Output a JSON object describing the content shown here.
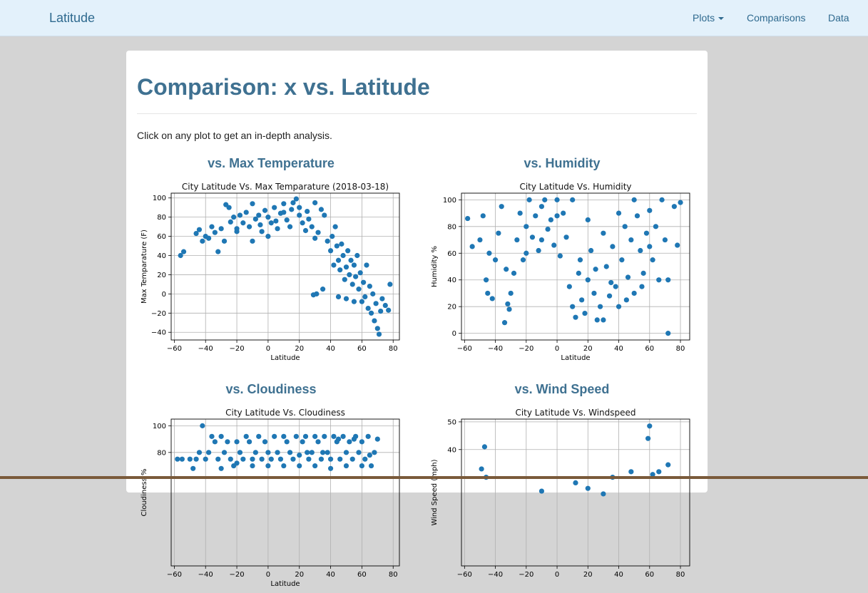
{
  "navbar": {
    "brand": "Latitude",
    "plots_label": "Plots",
    "comparisons_label": "Comparisons",
    "data_label": "Data"
  },
  "page": {
    "title": "Comparison: x vs. Latitude",
    "intro": "Click on any plot to get an in-depth analysis."
  },
  "plots": [
    {
      "heading": "vs. Max Temperature",
      "chart_data": {
        "type": "scatter",
        "title": "City Latitude Vs. Max Temparature (2018-03-18)",
        "xlabel": "Latitude",
        "ylabel": "Max Temparature (F)",
        "xlim": [
          -62,
          84
        ],
        "ylim": [
          -48,
          105
        ],
        "xticks": [
          -60,
          -40,
          -20,
          0,
          20,
          40,
          60,
          80
        ],
        "yticks": [
          -40,
          -20,
          0,
          20,
          40,
          60,
          80,
          100
        ],
        "xtick_labels": [
          "−60",
          "−40",
          "−20",
          "0",
          "20",
          "40",
          "60",
          "80"
        ],
        "ytick_labels": [
          "−40",
          "−20",
          "0",
          "20",
          "40",
          "60",
          "80",
          "100"
        ],
        "grid": true,
        "color": "#1f77b4",
        "points": [
          [
            -56,
            40
          ],
          [
            -54,
            44
          ],
          [
            -46,
            63
          ],
          [
            -44,
            67
          ],
          [
            -42,
            55
          ],
          [
            -40,
            60
          ],
          [
            -38,
            58
          ],
          [
            -36,
            70
          ],
          [
            -34,
            64
          ],
          [
            -32,
            44
          ],
          [
            -30,
            68
          ],
          [
            -28,
            55
          ],
          [
            -27,
            93
          ],
          [
            -25,
            90
          ],
          [
            -24,
            75
          ],
          [
            -22,
            80
          ],
          [
            -20,
            65
          ],
          [
            -18,
            82
          ],
          [
            -16,
            74
          ],
          [
            -14,
            85
          ],
          [
            -12,
            70
          ],
          [
            -10,
            55
          ],
          [
            -8,
            78
          ],
          [
            -6,
            82
          ],
          [
            -4,
            65
          ],
          [
            -2,
            87
          ],
          [
            0,
            80
          ],
          [
            2,
            74
          ],
          [
            4,
            90
          ],
          [
            6,
            68
          ],
          [
            8,
            84
          ],
          [
            10,
            94
          ],
          [
            12,
            77
          ],
          [
            14,
            70
          ],
          [
            16,
            95
          ],
          [
            18,
            99
          ],
          [
            20,
            82
          ],
          [
            22,
            74
          ],
          [
            24,
            66
          ],
          [
            26,
            78
          ],
          [
            28,
            70
          ],
          [
            30,
            58
          ],
          [
            32,
            64
          ],
          [
            34,
            88
          ],
          [
            36,
            82
          ],
          [
            38,
            55
          ],
          [
            40,
            45
          ],
          [
            41,
            60
          ],
          [
            42,
            30
          ],
          [
            43,
            70
          ],
          [
            44,
            50
          ],
          [
            45,
            35
          ],
          [
            46,
            25
          ],
          [
            47,
            52
          ],
          [
            48,
            40
          ],
          [
            49,
            15
          ],
          [
            50,
            28
          ],
          [
            51,
            45
          ],
          [
            52,
            20
          ],
          [
            53,
            35
          ],
          [
            54,
            10
          ],
          [
            55,
            30
          ],
          [
            56,
            18
          ],
          [
            57,
            40
          ],
          [
            58,
            5
          ],
          [
            59,
            22
          ],
          [
            60,
            -8
          ],
          [
            61,
            12
          ],
          [
            62,
            -3
          ],
          [
            63,
            30
          ],
          [
            64,
            -15
          ],
          [
            65,
            8
          ],
          [
            66,
            -20
          ],
          [
            67,
            0
          ],
          [
            68,
            -28
          ],
          [
            69,
            -10
          ],
          [
            70,
            -36
          ],
          [
            71,
            -42
          ],
          [
            72,
            -18
          ],
          [
            73,
            -5
          ],
          [
            75,
            -12
          ],
          [
            77,
            -17
          ],
          [
            78,
            10
          ],
          [
            29,
            -1
          ],
          [
            31,
            0
          ],
          [
            35,
            5
          ],
          [
            45,
            -3
          ],
          [
            50,
            -5
          ],
          [
            55,
            -8
          ],
          [
            30,
            95
          ],
          [
            25,
            86
          ],
          [
            20,
            90
          ],
          [
            15,
            88
          ],
          [
            -10,
            94
          ],
          [
            -5,
            72
          ],
          [
            10,
            85
          ],
          [
            5,
            76
          ],
          [
            0,
            60
          ],
          [
            -20,
            68
          ]
        ]
      }
    },
    {
      "heading": "vs. Humidity",
      "chart_data": {
        "type": "scatter",
        "title": "City Latitude Vs. Humidity",
        "xlabel": "Latitude",
        "ylabel": "Humidity %",
        "xlim": [
          -62,
          86
        ],
        "ylim": [
          -5,
          105
        ],
        "xticks": [
          -60,
          -40,
          -20,
          0,
          20,
          40,
          60,
          80
        ],
        "yticks": [
          0,
          20,
          40,
          60,
          80,
          100
        ],
        "xtick_labels": [
          "−60",
          "−40",
          "−20",
          "0",
          "20",
          "40",
          "60",
          "80"
        ],
        "ytick_labels": [
          "0",
          "20",
          "40",
          "60",
          "80",
          "100"
        ],
        "grid": true,
        "color": "#1f77b4",
        "points": [
          [
            -58,
            86
          ],
          [
            -55,
            65
          ],
          [
            -50,
            70
          ],
          [
            -48,
            88
          ],
          [
            -46,
            40
          ],
          [
            -45,
            30
          ],
          [
            -44,
            60
          ],
          [
            -42,
            26
          ],
          [
            -40,
            55
          ],
          [
            -38,
            75
          ],
          [
            -36,
            95
          ],
          [
            -34,
            8
          ],
          [
            -33,
            48
          ],
          [
            -32,
            22
          ],
          [
            -31,
            18
          ],
          [
            -30,
            30
          ],
          [
            -28,
            45
          ],
          [
            -26,
            70
          ],
          [
            -24,
            90
          ],
          [
            -22,
            55
          ],
          [
            -20,
            80
          ],
          [
            -18,
            100
          ],
          [
            -16,
            72
          ],
          [
            -14,
            88
          ],
          [
            -12,
            62
          ],
          [
            -10,
            95
          ],
          [
            -8,
            100
          ],
          [
            -6,
            78
          ],
          [
            -4,
            85
          ],
          [
            -2,
            66
          ],
          [
            0,
            100
          ],
          [
            2,
            58
          ],
          [
            4,
            90
          ],
          [
            6,
            72
          ],
          [
            8,
            35
          ],
          [
            10,
            20
          ],
          [
            12,
            12
          ],
          [
            14,
            45
          ],
          [
            16,
            25
          ],
          [
            18,
            15
          ],
          [
            20,
            40
          ],
          [
            22,
            62
          ],
          [
            24,
            30
          ],
          [
            26,
            10
          ],
          [
            28,
            20
          ],
          [
            30,
            10
          ],
          [
            32,
            50
          ],
          [
            34,
            28
          ],
          [
            36,
            65
          ],
          [
            38,
            35
          ],
          [
            40,
            20
          ],
          [
            42,
            55
          ],
          [
            44,
            80
          ],
          [
            46,
            42
          ],
          [
            48,
            70
          ],
          [
            50,
            30
          ],
          [
            52,
            88
          ],
          [
            54,
            62
          ],
          [
            56,
            45
          ],
          [
            58,
            75
          ],
          [
            60,
            92
          ],
          [
            62,
            55
          ],
          [
            64,
            80
          ],
          [
            66,
            40
          ],
          [
            68,
            100
          ],
          [
            70,
            70
          ],
          [
            72,
            40
          ],
          [
            72,
            0
          ],
          [
            76,
            95
          ],
          [
            78,
            66
          ],
          [
            80,
            98
          ],
          [
            -20,
            60
          ],
          [
            -10,
            70
          ],
          [
            0,
            88
          ],
          [
            10,
            100
          ],
          [
            20,
            85
          ],
          [
            30,
            75
          ],
          [
            40,
            90
          ],
          [
            50,
            100
          ],
          [
            60,
            65
          ],
          [
            15,
            55
          ],
          [
            25,
            48
          ],
          [
            35,
            38
          ],
          [
            45,
            25
          ],
          [
            55,
            35
          ]
        ]
      }
    },
    {
      "heading": "vs. Cloudiness",
      "chart_data": {
        "type": "scatter",
        "title": "City Latitude Vs. Cloudiness",
        "xlabel": "Latitude",
        "ylabel": "Cloudiness %",
        "xlim": [
          -62,
          84
        ],
        "ylim": [
          -5,
          105
        ],
        "xticks": [
          -60,
          -40,
          -20,
          0,
          20,
          40,
          60,
          80
        ],
        "yticks": [
          80,
          100
        ],
        "xtick_labels": [
          "−60",
          "−40",
          "−20",
          "0",
          "20",
          "40",
          "60",
          "80"
        ],
        "ytick_labels": [
          "80",
          "100"
        ],
        "grid": true,
        "color": "#1f77b4",
        "points": [
          [
            -58,
            75
          ],
          [
            -55,
            75
          ],
          [
            -48,
            68
          ],
          [
            -46,
            75
          ],
          [
            -42,
            100
          ],
          [
            -40,
            75
          ],
          [
            -38,
            80
          ],
          [
            -36,
            92
          ],
          [
            -34,
            88
          ],
          [
            -32,
            75
          ],
          [
            -30,
            92
          ],
          [
            -28,
            80
          ],
          [
            -26,
            88
          ],
          [
            -24,
            75
          ],
          [
            -22,
            70
          ],
          [
            -20,
            88
          ],
          [
            -18,
            80
          ],
          [
            -16,
            75
          ],
          [
            -14,
            92
          ],
          [
            -12,
            88
          ],
          [
            -10,
            75
          ],
          [
            -8,
            80
          ],
          [
            -6,
            92
          ],
          [
            -4,
            75
          ],
          [
            -2,
            88
          ],
          [
            0,
            80
          ],
          [
            2,
            75
          ],
          [
            4,
            92
          ],
          [
            6,
            80
          ],
          [
            8,
            75
          ],
          [
            10,
            92
          ],
          [
            12,
            88
          ],
          [
            14,
            80
          ],
          [
            16,
            75
          ],
          [
            18,
            92
          ],
          [
            20,
            70
          ],
          [
            22,
            88
          ],
          [
            24,
            92
          ],
          [
            26,
            75
          ],
          [
            28,
            80
          ],
          [
            30,
            92
          ],
          [
            32,
            88
          ],
          [
            34,
            75
          ],
          [
            36,
            92
          ],
          [
            38,
            80
          ],
          [
            40,
            68
          ],
          [
            42,
            92
          ],
          [
            44,
            88
          ],
          [
            46,
            75
          ],
          [
            48,
            92
          ],
          [
            50,
            80
          ],
          [
            52,
            88
          ],
          [
            54,
            75
          ],
          [
            56,
            92
          ],
          [
            58,
            80
          ],
          [
            60,
            88
          ],
          [
            62,
            75
          ],
          [
            64,
            92
          ],
          [
            66,
            70
          ],
          [
            68,
            80
          ],
          [
            70,
            90
          ],
          [
            -30,
            68
          ],
          [
            -20,
            72
          ],
          [
            0,
            70
          ],
          [
            10,
            70
          ],
          [
            20,
            78
          ],
          [
            30,
            70
          ],
          [
            40,
            75
          ],
          [
            50,
            70
          ],
          [
            60,
            70
          ],
          [
            65,
            78
          ],
          [
            -50,
            75
          ],
          [
            -44,
            80
          ],
          [
            -10,
            70
          ],
          [
            35,
            80
          ],
          [
            45,
            90
          ],
          [
            55,
            90
          ],
          [
            25,
            80
          ]
        ]
      }
    },
    {
      "heading": "vs. Wind Speed",
      "chart_data": {
        "type": "scatter",
        "title": "City Latitude Vs. Windspeed",
        "xlabel": "",
        "ylabel": "Wind Speed (mph)",
        "xlim": [
          -62,
          86
        ],
        "ylim": [
          -2,
          51
        ],
        "xticks": [
          -60,
          -40,
          -20,
          0,
          20,
          40,
          60,
          80
        ],
        "yticks": [
          30,
          40,
          50
        ],
        "xtick_labels": [
          "−60",
          "−40",
          "−20",
          "0",
          "20",
          "40",
          "60",
          "80"
        ],
        "ytick_labels": [
          "",
          "40",
          "50"
        ],
        "grid": true,
        "color": "#1f77b4",
        "points": [
          [
            -47,
            41
          ],
          [
            -49,
            33
          ],
          [
            -46,
            30
          ],
          [
            60,
            48.5
          ],
          [
            59,
            44
          ],
          [
            62,
            31
          ],
          [
            66,
            32
          ],
          [
            72,
            34.5
          ],
          [
            48,
            32
          ],
          [
            36,
            30
          ],
          [
            12,
            28
          ],
          [
            20,
            26
          ],
          [
            -10,
            25
          ],
          [
            30,
            24
          ]
        ]
      }
    }
  ]
}
